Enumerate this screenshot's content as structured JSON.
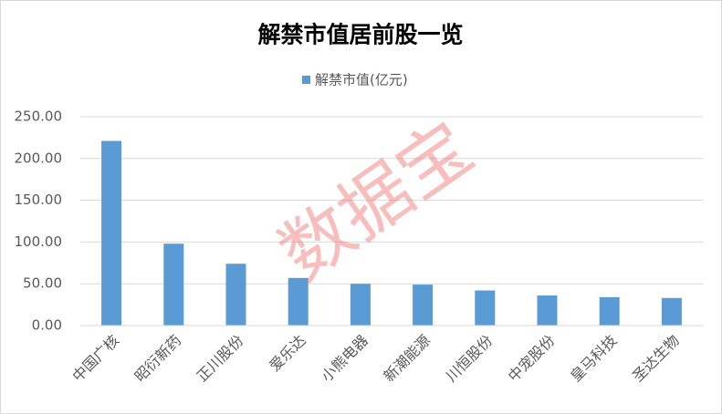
{
  "chart_data": {
    "type": "bar",
    "title": "解禁市值居前股一览",
    "annotation": "数据宝",
    "categories": [
      "中国广核",
      "昭衍新药",
      "正川股份",
      "爱乐达",
      "小熊电器",
      "新潮能源",
      "川恒股份",
      "中宠股份",
      "皇马科技",
      "圣达生物"
    ],
    "series": [
      {
        "name": "解禁市值(亿元)",
        "color": "#5b9bd5",
        "values": [
          221,
          98,
          74,
          57,
          50,
          49,
          42,
          36,
          34,
          33
        ]
      }
    ],
    "ylim": [
      0,
      250
    ],
    "yticks": [
      {
        "value": 0,
        "label": "0.00"
      },
      {
        "value": 50,
        "label": "50.00"
      },
      {
        "value": 100,
        "label": "100.00"
      },
      {
        "value": 150,
        "label": "150.00"
      },
      {
        "value": 200,
        "label": "200.00"
      },
      {
        "value": 250,
        "label": "250.00"
      }
    ],
    "grid": true,
    "legend": "top"
  }
}
